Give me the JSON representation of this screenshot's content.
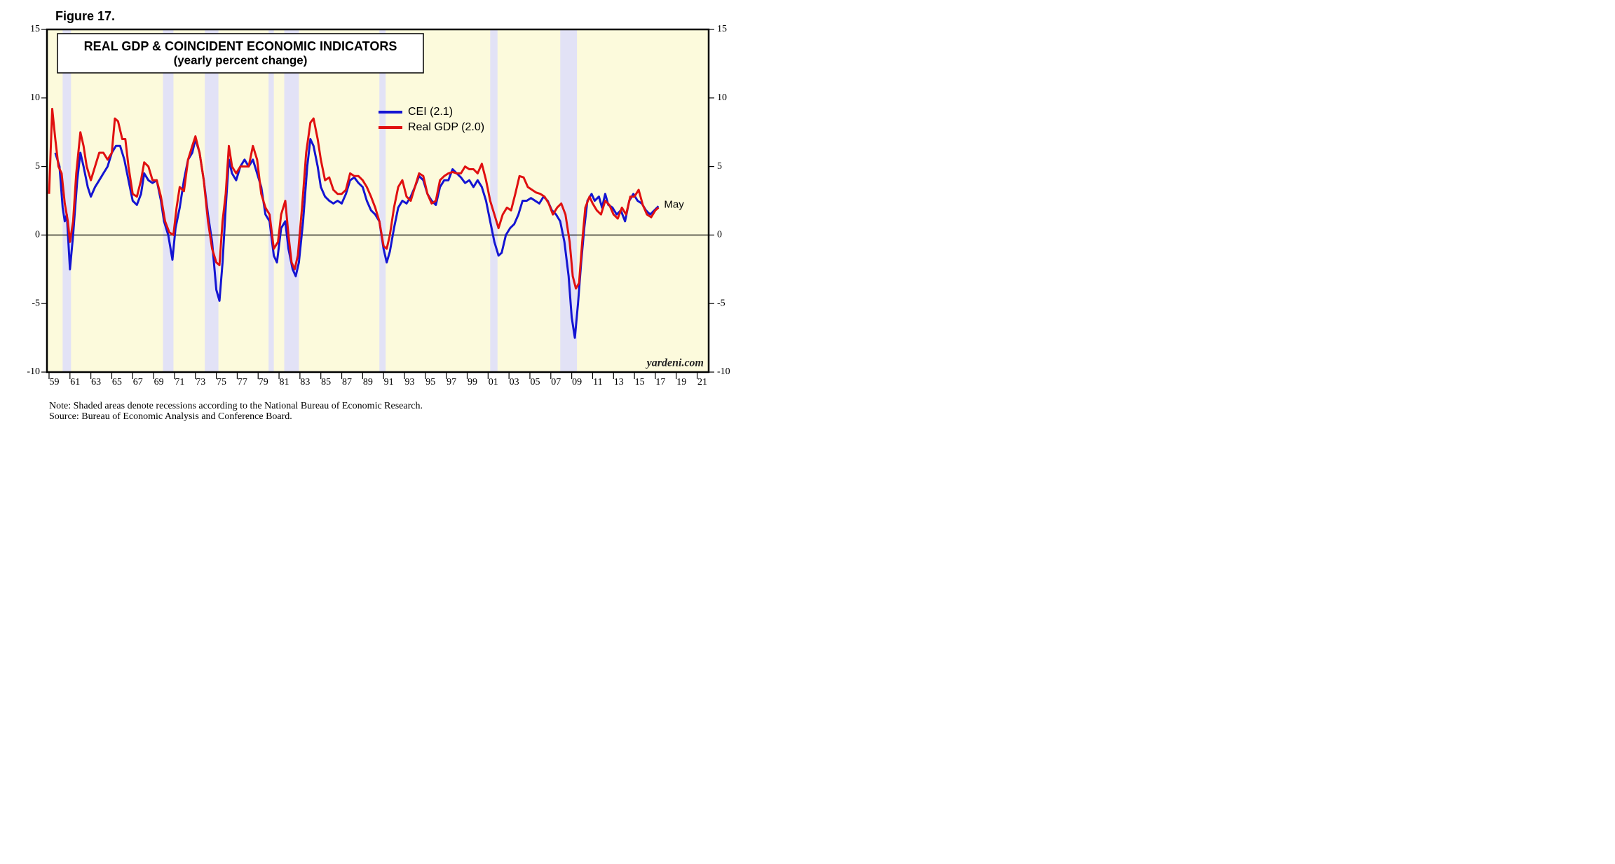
{
  "figure_label": "Figure 17.",
  "chart_data": {
    "type": "line",
    "title": "REAL GDP & COINCIDENT ECONOMIC INDICATORS",
    "subtitle": "(yearly percent change)",
    "xlim": [
      1958.8,
      2022.1
    ],
    "ylim": [
      -10,
      15
    ],
    "yticks": [
      15,
      10,
      5,
      0,
      -5,
      -10
    ],
    "xticks": [
      {
        "value": 1959,
        "label": "59"
      },
      {
        "value": 1961,
        "label": "61"
      },
      {
        "value": 1963,
        "label": "63"
      },
      {
        "value": 1965,
        "label": "65"
      },
      {
        "value": 1967,
        "label": "67"
      },
      {
        "value": 1969,
        "label": "69"
      },
      {
        "value": 1971,
        "label": "71"
      },
      {
        "value": 1973,
        "label": "73"
      },
      {
        "value": 1975,
        "label": "75"
      },
      {
        "value": 1977,
        "label": "77"
      },
      {
        "value": 1979,
        "label": "79"
      },
      {
        "value": 1981,
        "label": "81"
      },
      {
        "value": 1983,
        "label": "83"
      },
      {
        "value": 1985,
        "label": "85"
      },
      {
        "value": 1987,
        "label": "87"
      },
      {
        "value": 1989,
        "label": "89"
      },
      {
        "value": 1991,
        "label": "91"
      },
      {
        "value": 1993,
        "label": "93"
      },
      {
        "value": 1995,
        "label": "95"
      },
      {
        "value": 1997,
        "label": "97"
      },
      {
        "value": 1999,
        "label": "99"
      },
      {
        "value": 2001,
        "label": "01"
      },
      {
        "value": 2003,
        "label": "03"
      },
      {
        "value": 2005,
        "label": "05"
      },
      {
        "value": 2007,
        "label": "07"
      },
      {
        "value": 2009,
        "label": "09"
      },
      {
        "value": 2011,
        "label": "11"
      },
      {
        "value": 2013,
        "label": "13"
      },
      {
        "value": 2015,
        "label": "15"
      },
      {
        "value": 2017,
        "label": "17"
      },
      {
        "value": 2019,
        "label": "19"
      },
      {
        "value": 2021,
        "label": "21"
      }
    ],
    "zero_line": true,
    "recessions": [
      [
        1960.3,
        1961.1
      ],
      [
        1969.9,
        1970.9
      ],
      [
        1973.9,
        1975.2
      ],
      [
        1980.0,
        1980.5
      ],
      [
        1981.5,
        1982.9
      ],
      [
        1990.6,
        1991.2
      ],
      [
        2001.2,
        2001.9
      ],
      [
        2007.9,
        2009.5
      ]
    ],
    "recession_color": "#e2e2f6",
    "background_color": "#fcfadc",
    "series": [
      {
        "name": "CEI (2.1)",
        "color": "#1414d2",
        "x": [
          1959.6,
          1960.0,
          1960.3,
          1960.5,
          1960.7,
          1961.0,
          1961.3,
          1961.7,
          1962.0,
          1962.3,
          1962.7,
          1963.0,
          1963.4,
          1963.8,
          1964.2,
          1964.6,
          1965.0,
          1965.4,
          1965.8,
          1966.2,
          1966.6,
          1967.0,
          1967.4,
          1967.8,
          1968.1,
          1968.5,
          1968.9,
          1969.3,
          1969.7,
          1970.0,
          1970.4,
          1970.8,
          1971.1,
          1971.5,
          1971.9,
          1972.3,
          1972.7,
          1973.0,
          1973.4,
          1973.8,
          1974.2,
          1974.6,
          1975.0,
          1975.3,
          1975.6,
          1975.9,
          1976.2,
          1976.5,
          1976.9,
          1977.3,
          1977.7,
          1978.1,
          1978.5,
          1978.9,
          1979.3,
          1979.7,
          1980.1,
          1980.5,
          1980.8,
          1981.2,
          1981.6,
          1981.9,
          1982.3,
          1982.6,
          1982.9,
          1983.3,
          1983.7,
          1984.0,
          1984.3,
          1984.7,
          1985.0,
          1985.4,
          1985.8,
          1986.2,
          1986.6,
          1987.0,
          1987.4,
          1987.8,
          1988.2,
          1988.6,
          1989.0,
          1989.4,
          1989.8,
          1990.2,
          1990.6,
          1991.0,
          1991.3,
          1991.6,
          1992.0,
          1992.4,
          1992.8,
          1993.2,
          1993.6,
          1994.0,
          1994.4,
          1994.8,
          1995.2,
          1995.6,
          1996.0,
          1996.4,
          1996.8,
          1997.2,
          1997.6,
          1998.0,
          1998.4,
          1998.8,
          1999.2,
          1999.6,
          2000.0,
          2000.4,
          2000.8,
          2001.2,
          2001.6,
          2002.0,
          2002.3,
          2002.7,
          2003.1,
          2003.5,
          2003.9,
          2004.3,
          2004.7,
          2005.1,
          2005.5,
          2005.9,
          2006.3,
          2006.7,
          2007.1,
          2007.5,
          2007.9,
          2008.3,
          2008.7,
          2009.0,
          2009.3,
          2009.6,
          2009.9,
          2010.2,
          2010.5,
          2010.9,
          2011.2,
          2011.6,
          2011.9,
          2012.2,
          2012.5,
          2012.9,
          2013.3,
          2013.7,
          2014.1,
          2014.5,
          2014.9,
          2015.3,
          2015.7,
          2016.1,
          2016.5,
          2016.9,
          2017.3
        ],
        "values": [
          6,
          5,
          2,
          1,
          1.5,
          -2.5,
          0,
          4,
          6,
          5,
          3.5,
          2.8,
          3.5,
          4,
          4.5,
          5,
          6,
          6.5,
          6.5,
          5.5,
          4,
          2.5,
          2.2,
          3,
          4.5,
          4,
          3.8,
          4,
          2.5,
          1,
          0,
          -1.8,
          0.5,
          2,
          4,
          5.5,
          6,
          7,
          6,
          4,
          1.5,
          -0.5,
          -4,
          -4.8,
          -2,
          2,
          5.5,
          4.5,
          4,
          5,
          5.5,
          5,
          5.5,
          4.5,
          3.5,
          1.5,
          1,
          -1.5,
          -2,
          0.5,
          1,
          -1,
          -2.5,
          -3,
          -2,
          1,
          5,
          7,
          6.5,
          5,
          3.5,
          2.8,
          2.5,
          2.3,
          2.5,
          2.3,
          3,
          4,
          4.2,
          3.8,
          3.5,
          2.5,
          1.8,
          1.5,
          1,
          -1,
          -2,
          -1.2,
          0.5,
          2,
          2.5,
          2.3,
          2.8,
          3.5,
          4.3,
          4,
          3,
          2.5,
          2.2,
          3.5,
          4,
          4,
          4.8,
          4.5,
          4.2,
          3.8,
          4,
          3.5,
          4,
          3.5,
          2.5,
          1,
          -0.5,
          -1.5,
          -1.3,
          0,
          0.5,
          0.8,
          1.5,
          2.5,
          2.5,
          2.7,
          2.5,
          2.3,
          2.8,
          2.5,
          1.8,
          1.5,
          1,
          -0.5,
          -3,
          -6,
          -7.5,
          -5,
          -2,
          0.5,
          2.5,
          3,
          2.5,
          2.8,
          2,
          3,
          2.2,
          2,
          1.5,
          1.8,
          1,
          2.5,
          3,
          2.5,
          2.3,
          1.8,
          1.5,
          1.8,
          2.1
        ]
      },
      {
        "name": "Real GDP (2.0)",
        "color": "#e01010",
        "x": [
          1959.0,
          1959.3,
          1959.6,
          1959.9,
          1960.2,
          1960.5,
          1960.8,
          1961.0,
          1961.3,
          1961.6,
          1962.0,
          1962.3,
          1962.6,
          1963.0,
          1963.4,
          1963.8,
          1964.2,
          1964.6,
          1965.0,
          1965.3,
          1965.6,
          1966.0,
          1966.3,
          1966.6,
          1967.0,
          1967.4,
          1967.8,
          1968.1,
          1968.5,
          1968.9,
          1969.3,
          1969.7,
          1970.1,
          1970.5,
          1970.9,
          1971.2,
          1971.5,
          1971.9,
          1972.3,
          1972.7,
          1973.0,
          1973.4,
          1973.8,
          1974.2,
          1974.6,
          1975.0,
          1975.3,
          1975.6,
          1975.9,
          1976.2,
          1976.5,
          1976.9,
          1977.3,
          1977.7,
          1978.1,
          1978.5,
          1978.9,
          1979.3,
          1979.7,
          1980.1,
          1980.5,
          1980.9,
          1981.2,
          1981.6,
          1981.9,
          1982.2,
          1982.5,
          1982.8,
          1983.2,
          1983.6,
          1984.0,
          1984.3,
          1984.7,
          1985.0,
          1985.4,
          1985.8,
          1986.2,
          1986.6,
          1987.0,
          1987.4,
          1987.8,
          1988.2,
          1988.6,
          1989.0,
          1989.4,
          1989.8,
          1990.2,
          1990.6,
          1991.0,
          1991.3,
          1991.6,
          1992.0,
          1992.4,
          1992.8,
          1993.2,
          1993.6,
          1994.0,
          1994.4,
          1994.8,
          1995.2,
          1995.6,
          1996.0,
          1996.4,
          1996.8,
          1997.2,
          1997.6,
          1998.0,
          1998.4,
          1998.8,
          1999.2,
          1999.6,
          2000.0,
          2000.4,
          2000.8,
          2001.2,
          2001.6,
          2002.0,
          2002.4,
          2002.8,
          2003.2,
          2003.6,
          2004.0,
          2004.4,
          2004.8,
          2005.2,
          2005.6,
          2006.0,
          2006.4,
          2006.8,
          2007.2,
          2007.6,
          2008.0,
          2008.4,
          2008.8,
          2009.1,
          2009.4,
          2009.7,
          2010.0,
          2010.3,
          2010.7,
          2011.0,
          2011.4,
          2011.8,
          2012.2,
          2012.6,
          2013.0,
          2013.4,
          2013.8,
          2014.2,
          2014.6,
          2015.0,
          2015.4,
          2015.8,
          2016.2,
          2016.6,
          2017.0,
          2017.3
        ],
        "values": [
          3,
          9.2,
          7,
          5,
          4.5,
          2.3,
          1,
          -0.5,
          1,
          4.5,
          7.5,
          6.5,
          5,
          4,
          5,
          6,
          6,
          5.5,
          6,
          8.5,
          8.3,
          7,
          7,
          5,
          3,
          2.8,
          4,
          5.3,
          5,
          4,
          4,
          2.8,
          1,
          0.2,
          0,
          2,
          3.5,
          3.2,
          5.5,
          6.5,
          7.2,
          6,
          4,
          1,
          -1,
          -2,
          -2.2,
          1,
          3,
          6.5,
          5,
          4.5,
          5,
          5,
          5,
          6.5,
          5.5,
          3,
          2,
          1.5,
          -1,
          -0.5,
          1.5,
          2.5,
          0,
          -2,
          -2.5,
          -1.5,
          2,
          6,
          8.2,
          8.5,
          7,
          5.5,
          4,
          4.2,
          3.3,
          3,
          3,
          3.3,
          4.5,
          4.3,
          4.3,
          4,
          3.5,
          2.8,
          2,
          1,
          -0.8,
          -1,
          0,
          2,
          3.5,
          4,
          2.8,
          2.5,
          3.5,
          4.5,
          4.3,
          3,
          2.3,
          2.5,
          4,
          4.3,
          4.5,
          4.6,
          4.5,
          4.5,
          5,
          4.8,
          4.8,
          4.5,
          5.2,
          4,
          2.5,
          1.5,
          0.5,
          1.5,
          2,
          1.8,
          3,
          4.3,
          4.2,
          3.5,
          3.3,
          3.1,
          3,
          2.8,
          2.3,
          1.5,
          2,
          2.3,
          1.5,
          -0.5,
          -3,
          -3.9,
          -3.5,
          -0.5,
          2,
          2.8,
          2.3,
          1.8,
          1.5,
          2.5,
          2.2,
          1.5,
          1.2,
          2,
          1.5,
          2.8,
          2.8,
          3.3,
          2.2,
          1.5,
          1.3,
          1.8,
          2.0
        ]
      }
    ],
    "end_label": "May",
    "watermark": "yardeni.com",
    "note": "Note: Shaded areas denote recessions according to the National Bureau of Economic Research.",
    "source": "Source: Bureau of Economic Analysis and Conference Board."
  }
}
